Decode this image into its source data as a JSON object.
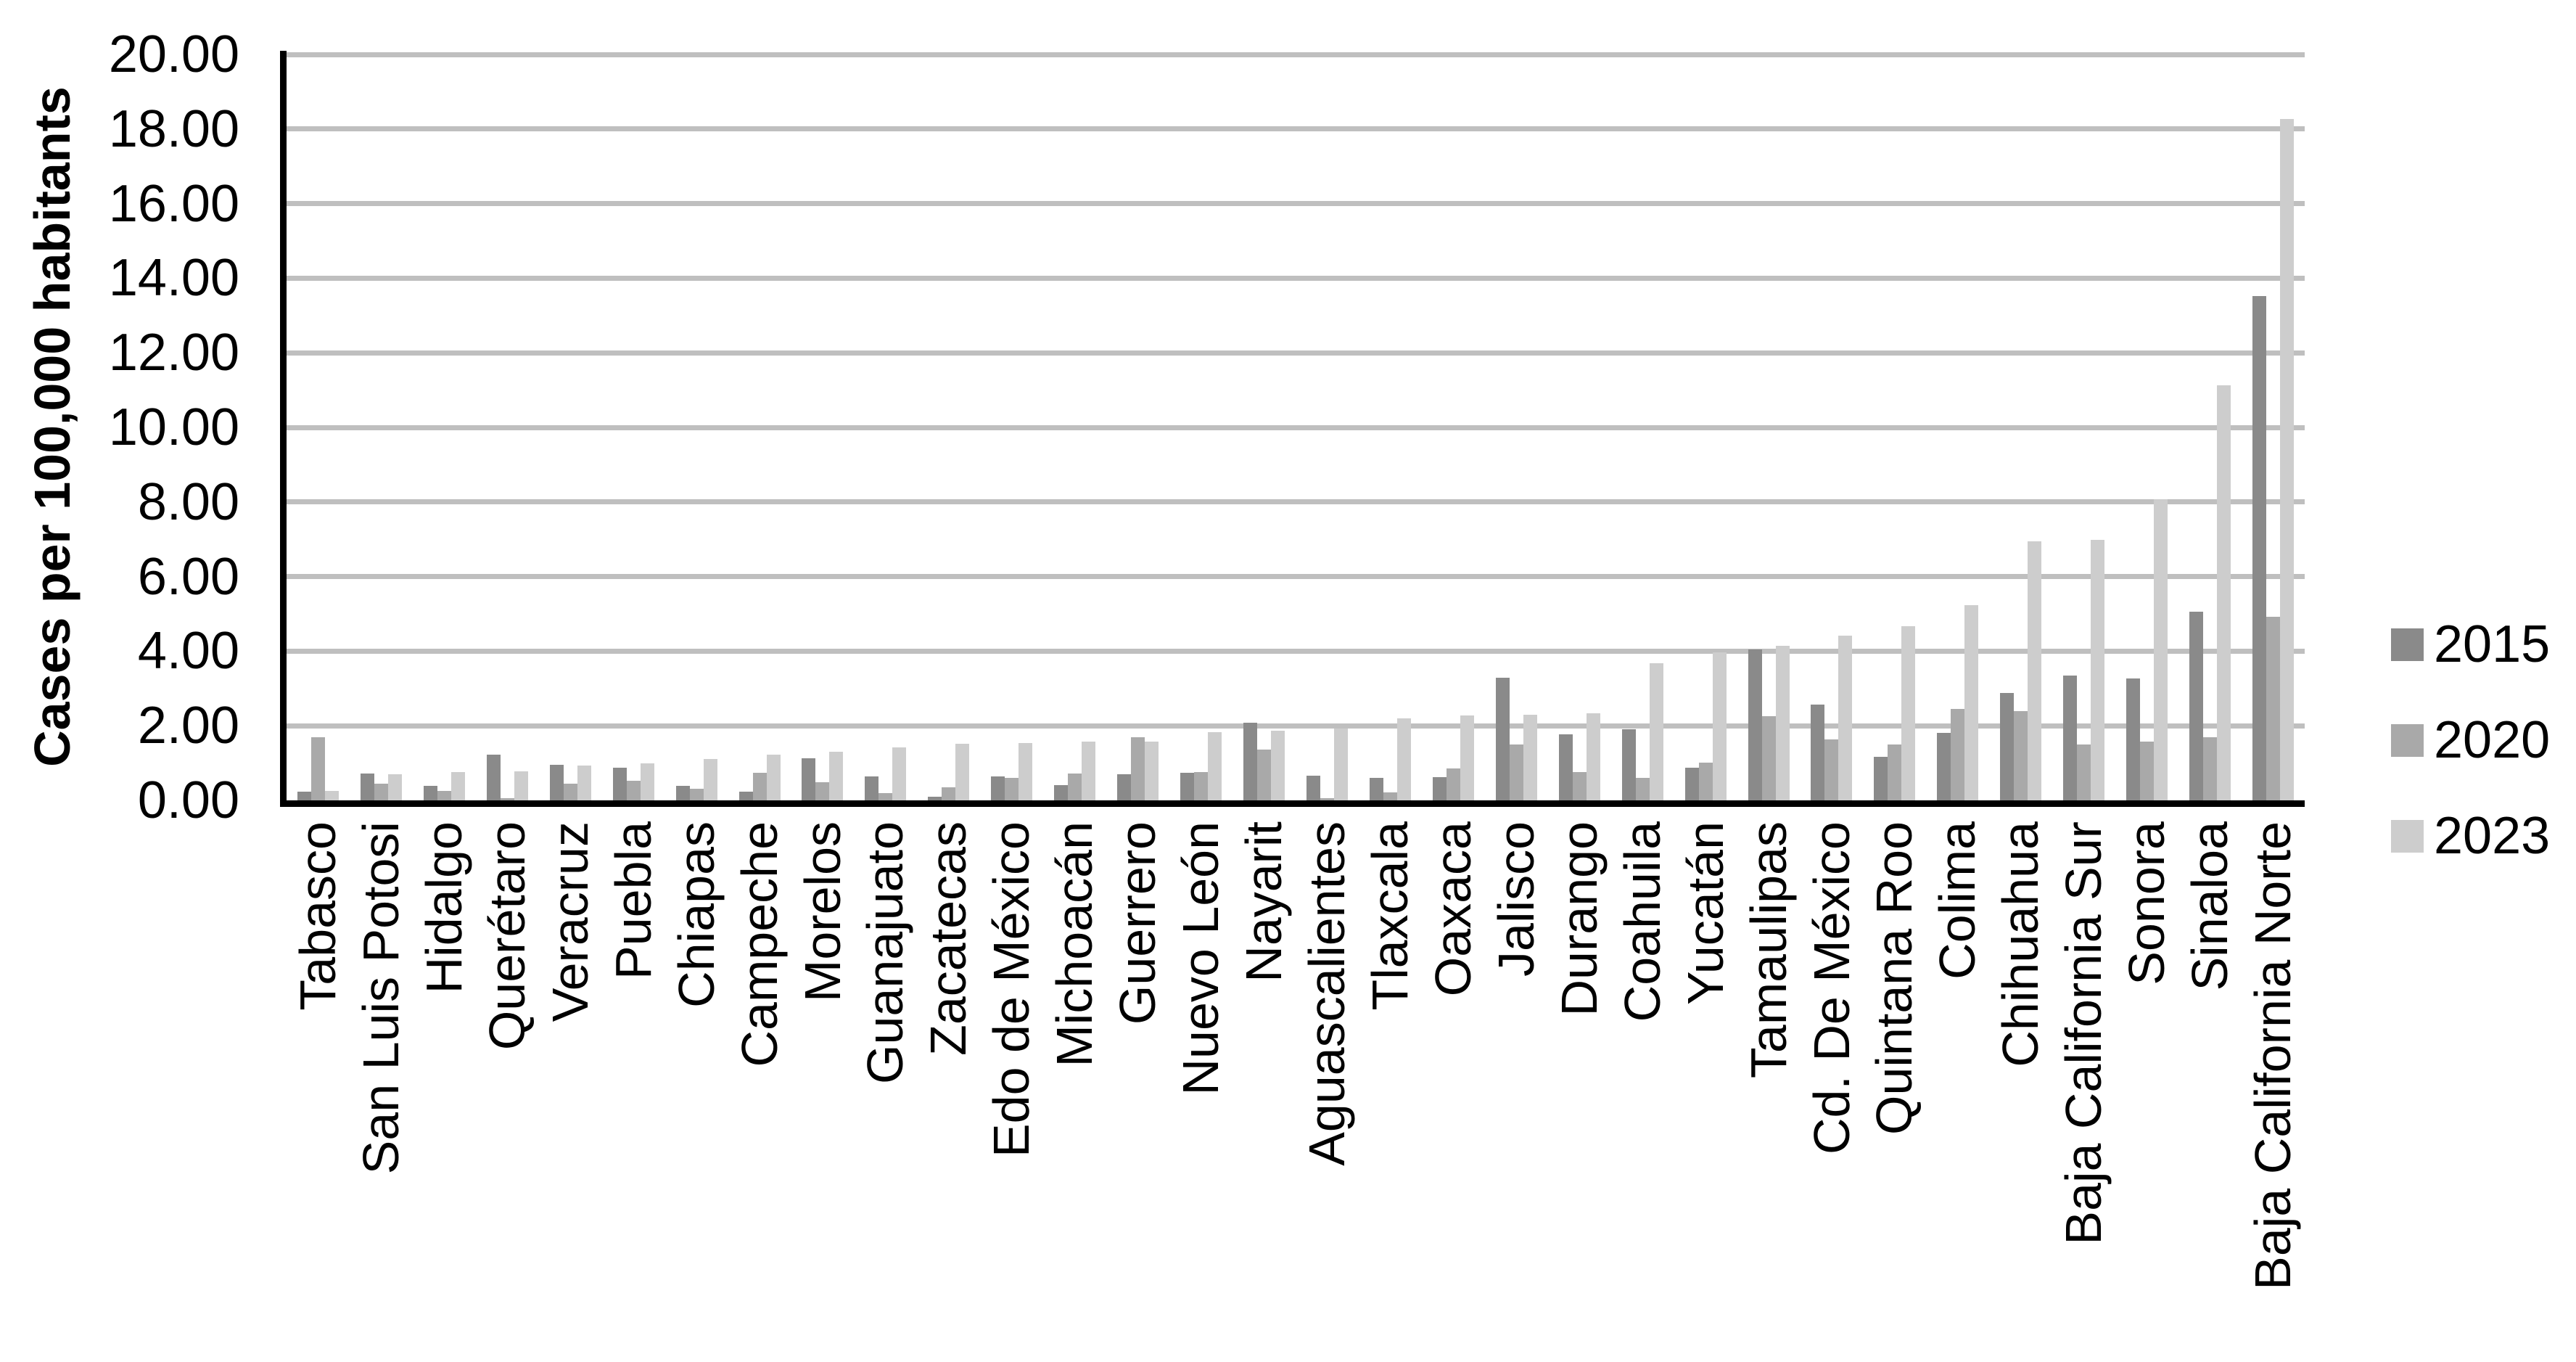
{
  "chart_data": {
    "type": "bar",
    "title": "",
    "ylabel": "Cases per 100,000 habitants",
    "xlabel": "",
    "ylim": [
      0,
      20
    ],
    "ytick_step": 2,
    "ytick_labels": [
      "0.00",
      "2.00",
      "4.00",
      "6.00",
      "8.00",
      "10.00",
      "12.00",
      "14.00",
      "16.00",
      "18.00",
      "20.00"
    ],
    "grid": true,
    "legend_position": "right",
    "categories": [
      "Tabasco",
      "San Luis Potosi",
      "Hidalgo",
      "Querétaro",
      "Veracruz",
      "Puebla",
      "Chiapas",
      "Campeche",
      "Morelos",
      "Guanajuato",
      "Zacatecas",
      "Edo de México",
      "Michoacán",
      "Guerrero",
      "Nuevo León",
      "Nayarit",
      "Aguascalientes",
      "Tlaxcala",
      "Oaxaca",
      "Jalisco",
      "Durango",
      "Coahuila",
      "Yucatán",
      "Tamaulipas",
      "Cd. De México",
      "Quintana Roo",
      "Colima",
      "Chihuahua",
      "Baja California Sur",
      "Sonora",
      "Sinaloa",
      "Baja California Norte"
    ],
    "series": [
      {
        "name": "2015",
        "color": "#8a8a8a",
        "values": [
          0.23,
          0.72,
          0.38,
          1.22,
          0.95,
          0.88,
          0.38,
          0.23,
          1.13,
          0.64,
          0.09,
          0.64,
          0.41,
          0.71,
          0.73,
          2.09,
          0.66,
          0.6,
          0.62,
          3.28,
          1.78,
          1.9,
          0.88,
          4.04,
          2.57,
          1.16,
          1.81,
          2.87,
          3.35,
          3.27,
          5.05,
          13.52
        ]
      },
      {
        "name": "2020",
        "color": "#a9a9a9",
        "values": [
          1.7,
          0.45,
          0.26,
          0.05,
          0.45,
          0.53,
          0.31,
          0.74,
          0.49,
          0.19,
          0.36,
          0.6,
          0.72,
          1.69,
          0.75,
          1.37,
          0.05,
          0.22,
          0.86,
          1.49,
          0.76,
          0.61,
          1.02,
          2.25,
          1.63,
          1.5,
          2.45,
          2.39,
          1.5,
          1.58,
          1.69,
          4.93
        ]
      },
      {
        "name": "2023",
        "color": "#cdcdcd",
        "values": [
          0.25,
          0.7,
          0.75,
          0.78,
          0.93,
          1.0,
          1.1,
          1.22,
          1.31,
          1.43,
          1.52,
          1.53,
          1.57,
          1.58,
          1.82,
          1.87,
          1.93,
          2.2,
          2.28,
          2.3,
          2.34,
          3.68,
          3.97,
          4.15,
          4.42,
          4.66,
          5.23,
          6.94,
          6.99,
          8.07,
          11.12,
          18.27
        ]
      }
    ],
    "colors": {
      "gridline": "#bfbfbf",
      "axis": "#000000",
      "background": "#ffffff"
    }
  }
}
